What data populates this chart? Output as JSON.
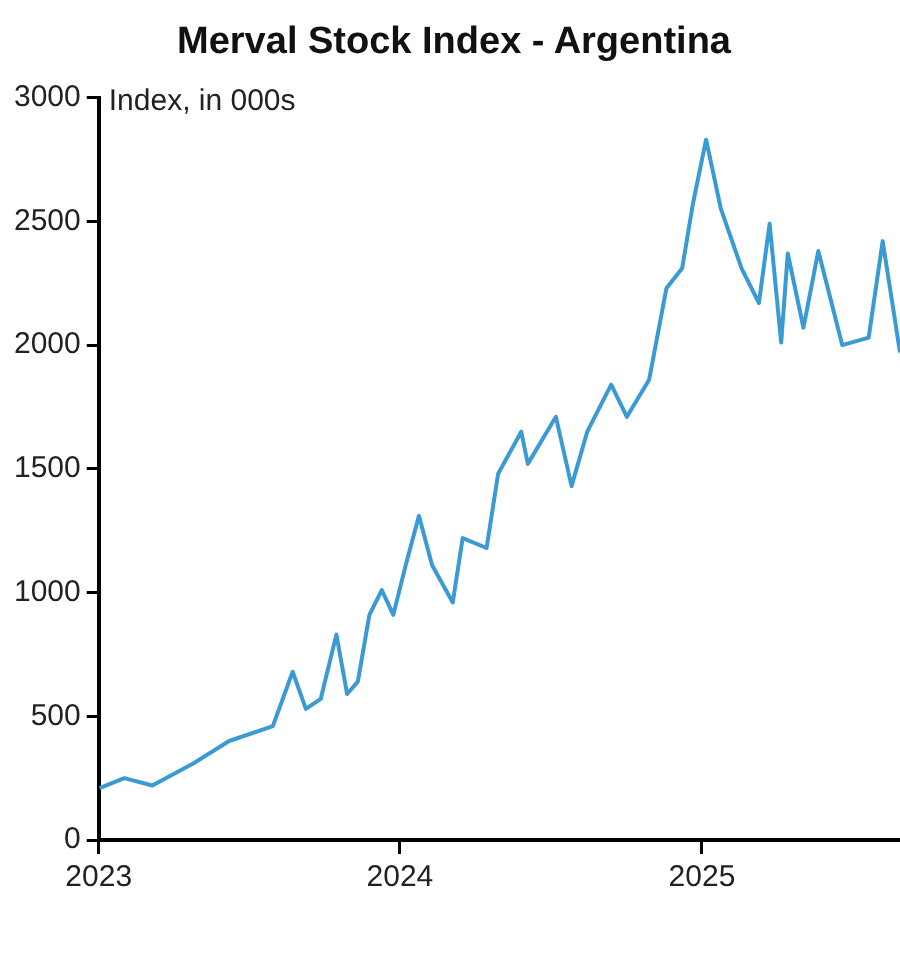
{
  "chart_data": {
    "type": "line",
    "title": "Merval Stock Index - Argentina",
    "ylabel": "Index, in 000s",
    "x": [
      "2023-01-02",
      "2023-02-01",
      "2023-03-07",
      "2023-04-26",
      "2023-06-08",
      "2023-07-31",
      "2023-08-24",
      "2023-09-09",
      "2023-09-27",
      "2023-10-16",
      "2023-10-29",
      "2023-11-11",
      "2023-11-25",
      "2023-12-10",
      "2023-12-24",
      "2024-01-08",
      "2024-01-24",
      "2024-02-09",
      "2024-03-05",
      "2024-03-17",
      "2024-04-15",
      "2024-04-29",
      "2024-05-27",
      "2024-06-04",
      "2024-07-08",
      "2024-07-27",
      "2024-08-15",
      "2024-09-13",
      "2024-10-02",
      "2024-10-29",
      "2024-11-19",
      "2024-12-08",
      "2024-12-21",
      "2025-01-06",
      "2025-01-24",
      "2025-02-18",
      "2025-03-11",
      "2025-03-24",
      "2025-04-07",
      "2025-04-15",
      "2025-05-04",
      "2025-05-22",
      "2025-06-20",
      "2025-07-22",
      "2025-08-08",
      "2025-08-29"
    ],
    "series": [
      {
        "color": "#3a9ad4",
        "values": [
          210,
          250,
          220,
          310,
          400,
          460,
          680,
          530,
          570,
          830,
          590,
          640,
          910,
          1010,
          910,
          1110,
          1310,
          1110,
          960,
          1220,
          1180,
          1480,
          1650,
          1520,
          1710,
          1430,
          1650,
          1840,
          1710,
          1860,
          2230,
          2310,
          2570,
          2830,
          2550,
          2310,
          2170,
          2490,
          2010,
          2370,
          2070,
          2380,
          2000,
          2030,
          2420,
          1970
        ]
      }
    ],
    "xlim": [
      "2023-01-01",
      "2025-08-29"
    ],
    "xticks": [
      {
        "value": "2023-01-01",
        "label": "2023"
      },
      {
        "value": "2024-01-01",
        "label": "2024"
      },
      {
        "value": "2025-01-01",
        "label": "2025"
      }
    ],
    "ylim": [
      0,
      3000
    ],
    "yticks": [
      0,
      500,
      1000,
      1500,
      2000,
      2500,
      3000
    ],
    "grid": false,
    "legend": false,
    "marker": "none",
    "line_style": "solid"
  }
}
